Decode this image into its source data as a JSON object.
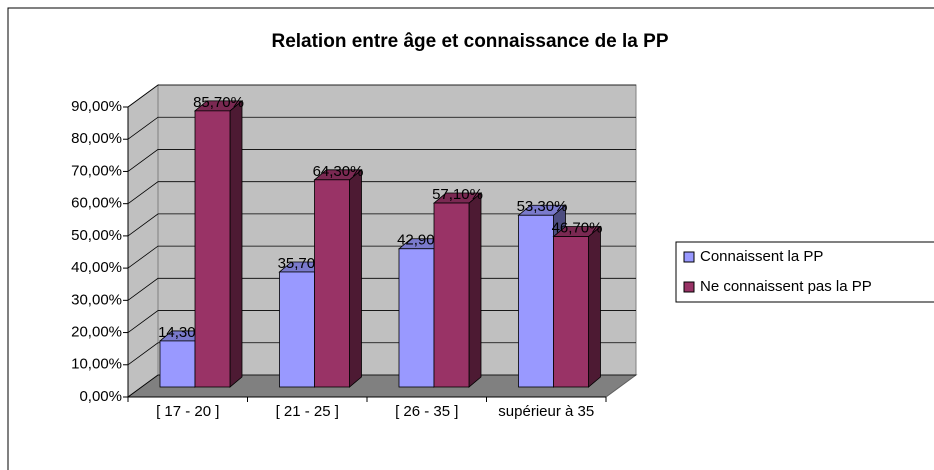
{
  "chart_data": {
    "type": "bar3d",
    "title": "Relation entre âge et connaissance de la PP",
    "categories": [
      "[ 17 - 20 ]",
      "[ 21 - 25 ]",
      "[ 26 - 35 ]",
      "supérieur à 35"
    ],
    "series": [
      {
        "name": "Connaissent la PP",
        "color": "#9999ff",
        "values": [
          14.3,
          35.7,
          42.9,
          53.3
        ],
        "value_labels": [
          "14,30%",
          "35,70%",
          "42,90%",
          "53,30%"
        ]
      },
      {
        "name": "Ne connaissent pas la PP",
        "color": "#993366",
        "values": [
          85.7,
          64.3,
          57.1,
          46.7
        ],
        "value_labels": [
          "85,70%",
          "64,30%",
          "57,10%",
          "46,70%"
        ]
      }
    ],
    "ylim": [
      0,
      90
    ],
    "yticks": [
      {
        "value": 0,
        "label": "0,00%"
      },
      {
        "value": 10,
        "label": "10,00%"
      },
      {
        "value": 20,
        "label": "20,00%"
      },
      {
        "value": 30,
        "label": "30,00%"
      },
      {
        "value": 40,
        "label": "40,00%"
      },
      {
        "value": 50,
        "label": "50,00%"
      },
      {
        "value": 60,
        "label": "60,00%"
      },
      {
        "value": 70,
        "label": "70,00%"
      },
      {
        "value": 80,
        "label": "80,00%"
      },
      {
        "value": 90,
        "label": "90,00%"
      }
    ],
    "grid": true,
    "legend": "right"
  }
}
